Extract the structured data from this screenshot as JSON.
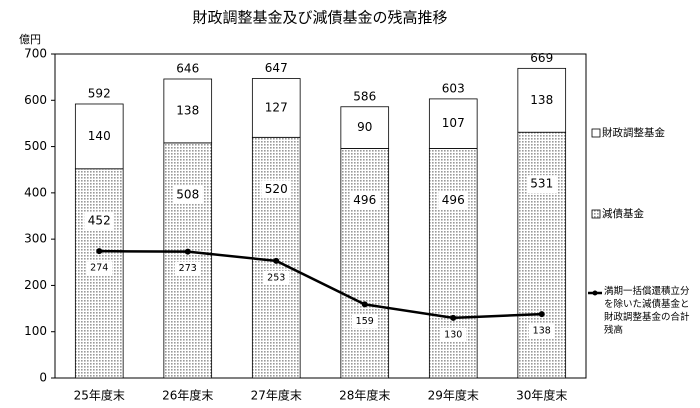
{
  "chart_data": {
    "type": "stacked-bar-line",
    "title": "財政調整基金及び減債基金の残高推移",
    "y_axis_label": "億円",
    "categories": [
      "25年度末",
      "26年度末",
      "27年度末",
      "28年度末",
      "29年度末",
      "30年度末"
    ],
    "series": [
      {
        "name": "減債基金",
        "color": "#9a9a9a",
        "values": [
          452,
          508,
          520,
          496,
          496,
          531
        ]
      },
      {
        "name": "財政調整基金",
        "color": "#ffffff",
        "values": [
          140,
          138,
          127,
          90,
          107,
          138
        ]
      }
    ],
    "total_labels": [
      592,
      646,
      647,
      586,
      603,
      669
    ],
    "line_series": {
      "name": "満期一括償還積立分を除いた減債基金と財政調整基金の合計残高",
      "color": "#000000",
      "values": [
        274,
        273,
        253,
        159,
        130,
        138
      ]
    },
    "ylim": [
      0,
      700
    ],
    "yticks": [
      0,
      100,
      200,
      300,
      400,
      500,
      600,
      700
    ]
  }
}
